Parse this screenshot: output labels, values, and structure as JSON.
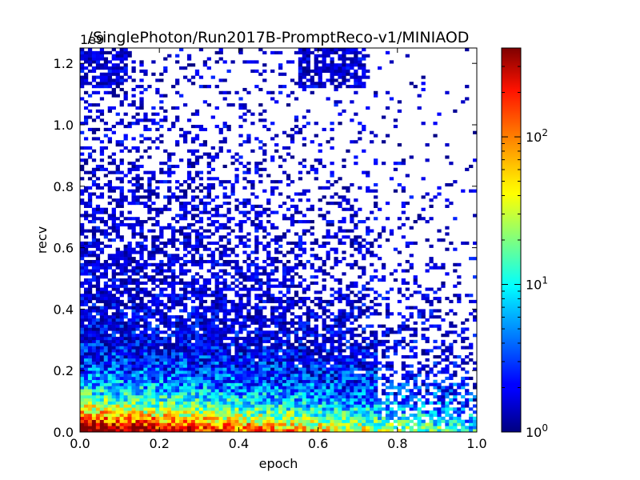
{
  "chart_data": {
    "type": "heatmap",
    "title": "/SinglePhoton/Run2017B-PromptReco-v1/MINIAOD",
    "xlabel": "epoch",
    "ylabel": "recv",
    "y_offset_label": "1e9",
    "xlim": [
      0.0,
      1.0
    ],
    "ylim": [
      0.0,
      1.25
    ],
    "x_ticks": [
      "0.0",
      "0.2",
      "0.4",
      "0.6",
      "0.8",
      "1.0"
    ],
    "y_ticks": [
      "0.0",
      "0.2",
      "0.4",
      "0.6",
      "0.8",
      "1.0",
      "1.2"
    ],
    "colorbar": {
      "scale": "log",
      "min": 1,
      "max": 400,
      "tick_base": "10",
      "tick_exponents": [
        "0",
        "1",
        "2"
      ],
      "colormap": "jet"
    },
    "bins": {
      "x": 100,
      "y": 125
    },
    "cell_count_range": [
      1,
      400
    ]
  }
}
